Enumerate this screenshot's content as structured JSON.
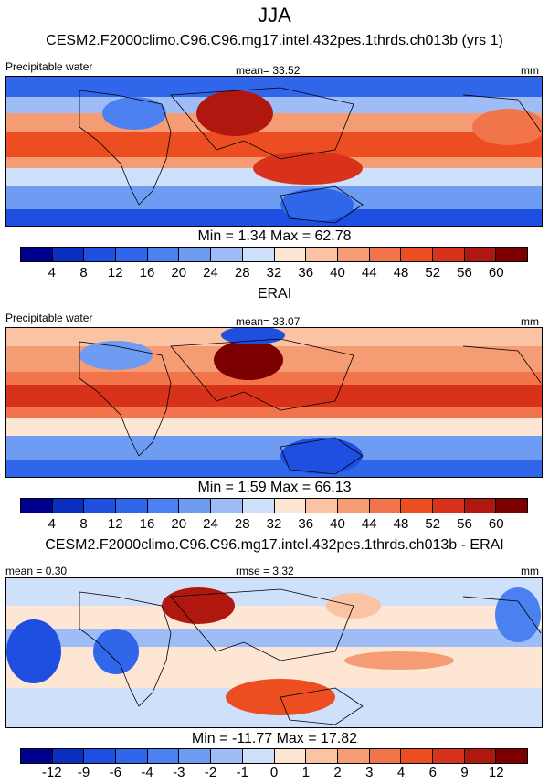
{
  "title": "JJA",
  "panels": [
    {
      "heading": "CESM2.F2000climo.C96.C96.mg17.intel.432pes.1thrds.ch013b (yrs 1)",
      "left_label": "Precipitable water",
      "stat_label": "mean=  33.52",
      "units": "mm",
      "minmax": "Min =   1.34 Max =  62.78",
      "colorbar_ticks": [
        "4",
        "8",
        "12",
        "16",
        "20",
        "24",
        "28",
        "32",
        "36",
        "40",
        "44",
        "48",
        "52",
        "56",
        "60"
      ],
      "colors": [
        "#00008f",
        "#0a2fc0",
        "#1f4fe0",
        "#2f66ea",
        "#4a80f0",
        "#6e9cf2",
        "#9ebcf6",
        "#cfe0fb",
        "#fde6d4",
        "#f9c3a4",
        "#f69c74",
        "#f2744a",
        "#ec4e22",
        "#d9321a",
        "#b0180f",
        "#7d0000"
      ]
    },
    {
      "heading": "ERAI",
      "left_label": "Precipitable water",
      "stat_label": "mean=  33.07",
      "units": "mm",
      "minmax": "Min =   1.59 Max =  66.13",
      "colorbar_ticks": [
        "4",
        "8",
        "12",
        "16",
        "20",
        "24",
        "28",
        "32",
        "36",
        "40",
        "44",
        "48",
        "52",
        "56",
        "60"
      ],
      "colors": [
        "#00008f",
        "#0a2fc0",
        "#1f4fe0",
        "#2f66ea",
        "#4a80f0",
        "#6e9cf2",
        "#9ebcf6",
        "#cfe0fb",
        "#fde6d4",
        "#f9c3a4",
        "#f69c74",
        "#f2744a",
        "#ec4e22",
        "#d9321a",
        "#b0180f",
        "#7d0000"
      ]
    },
    {
      "heading": "CESM2.F2000climo.C96.C96.mg17.intel.432pes.1thrds.ch013b - ERAI",
      "left_label": "mean =   0.30",
      "stat_label": "rmse =   3.32",
      "units": "mm",
      "minmax": "Min = -11.77 Max =  17.82",
      "colorbar_ticks": [
        "-12",
        "-9",
        "-6",
        "-4",
        "-3",
        "-2",
        "-1",
        "0",
        "1",
        "2",
        "3",
        "4",
        "6",
        "9",
        "12"
      ],
      "colors": [
        "#00008f",
        "#0a2fc0",
        "#1f4fe0",
        "#2f66ea",
        "#4a80f0",
        "#6e9cf2",
        "#9ebcf6",
        "#cfe0fb",
        "#fde6d4",
        "#f9c3a4",
        "#f69c74",
        "#f2744a",
        "#ec4e22",
        "#d9321a",
        "#b0180f",
        "#7d0000"
      ]
    }
  ]
}
